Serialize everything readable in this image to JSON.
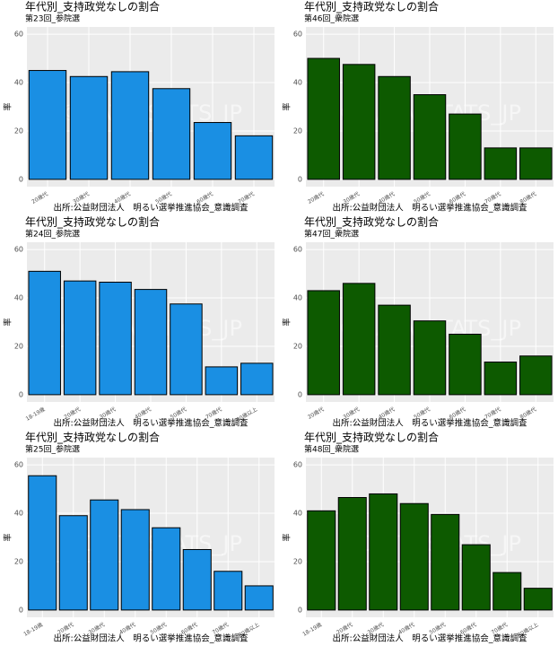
{
  "chart_data": [
    {
      "type": "bar",
      "title": "年代別_支持政党なしの割合",
      "subtitle": "第23回_参院選",
      "y_label": "率",
      "caption": "出所:公益財団法人　明るい選挙推進協会_意識調査",
      "watermark": "©DATA_STATS_JP",
      "categories": [
        "20歳代",
        "30歳代",
        "40歳代",
        "50歳代",
        "60歳代",
        "70歳代"
      ],
      "values": [
        45,
        42.5,
        44.5,
        37.5,
        23.5,
        18
      ],
      "color": "#1a8fe3",
      "ylim": [
        -3,
        63
      ],
      "yticks": [
        0,
        20,
        40,
        60
      ],
      "grid": true
    },
    {
      "type": "bar",
      "title": "年代別_支持政党なしの割合",
      "subtitle": "第46回_衆院選",
      "y_label": "率",
      "caption": "出所:公益財団法人　明るい選挙推進協会_意識調査",
      "watermark": "©DATA_STATS_JP",
      "categories": [
        "20歳代",
        "30歳代",
        "40歳代",
        "50歳代",
        "60歳代",
        "70歳代",
        "80歳代"
      ],
      "values": [
        50,
        47.5,
        42.5,
        35,
        27,
        13,
        13
      ],
      "color": "#0d5a00",
      "ylim": [
        -3,
        63
      ],
      "yticks": [
        0,
        20,
        40,
        60
      ],
      "grid": true
    },
    {
      "type": "bar",
      "title": "年代別_支持政党なしの割合",
      "subtitle": "第24回_参院選",
      "y_label": "率",
      "caption": "出所:公益財団法人　明るい選挙推進協会_意識調査",
      "watermark": "©DATA_STATS_JP",
      "categories": [
        "18-19歳",
        "20歳代",
        "30歳代",
        "40歳代",
        "50歳代",
        "70歳代",
        "80歳以上"
      ],
      "values": [
        51,
        47,
        46.5,
        43.5,
        37.5,
        11.5,
        13
      ],
      "color": "#1a8fe3",
      "ylim": [
        -3,
        63
      ],
      "yticks": [
        0,
        20,
        40,
        60
      ],
      "grid": true
    },
    {
      "type": "bar",
      "title": "年代別_支持政党なしの割合",
      "subtitle": "第47回_衆院選",
      "y_label": "率",
      "caption": "出所:公益財団法人　明るい選挙推進協会_意識調査",
      "watermark": "©DATA_STATS_JP",
      "categories": [
        "20歳代",
        "30歳代",
        "40歳代",
        "50歳代",
        "60歳代",
        "70歳代",
        "80歳代"
      ],
      "values": [
        43,
        46,
        37,
        30.5,
        25,
        13.5,
        16
      ],
      "color": "#0d5a00",
      "ylim": [
        -3,
        63
      ],
      "yticks": [
        0,
        20,
        40,
        60
      ],
      "grid": true
    },
    {
      "type": "bar",
      "title": "年代別_支持政党なしの割合",
      "subtitle": "第25回_参院選",
      "y_label": "率",
      "caption": "出所:公益財団法人　明るい選挙推進協会_意識調査",
      "watermark": "©DATA_STATS_JP",
      "categories": [
        "18-19歳",
        "20歳代",
        "30歳代",
        "40歳代",
        "50歳代",
        "60歳代",
        "70歳代",
        "80歳以上"
      ],
      "values": [
        55.5,
        39,
        45.5,
        41.5,
        34,
        25,
        16,
        10
      ],
      "color": "#1a8fe3",
      "ylim": [
        -3,
        63
      ],
      "yticks": [
        0,
        20,
        40,
        60
      ],
      "grid": true
    },
    {
      "type": "bar",
      "title": "年代別_支持政党なしの割合",
      "subtitle": "第48回_衆院選",
      "y_label": "率",
      "caption": "出所:公益財団法人　明るい選挙推進協会_意識調査",
      "watermark": "©DATA_STATS_JP",
      "categories": [
        "18-19歳",
        "20歳代",
        "30歳代",
        "40歳代",
        "50歳代",
        "60歳代",
        "70歳代",
        "80歳以上"
      ],
      "values": [
        41,
        46.5,
        48,
        44,
        39.5,
        27,
        15.5,
        9
      ],
      "color": "#0d5a00",
      "ylim": [
        -3,
        63
      ],
      "yticks": [
        0,
        20,
        40,
        60
      ],
      "grid": true
    }
  ]
}
